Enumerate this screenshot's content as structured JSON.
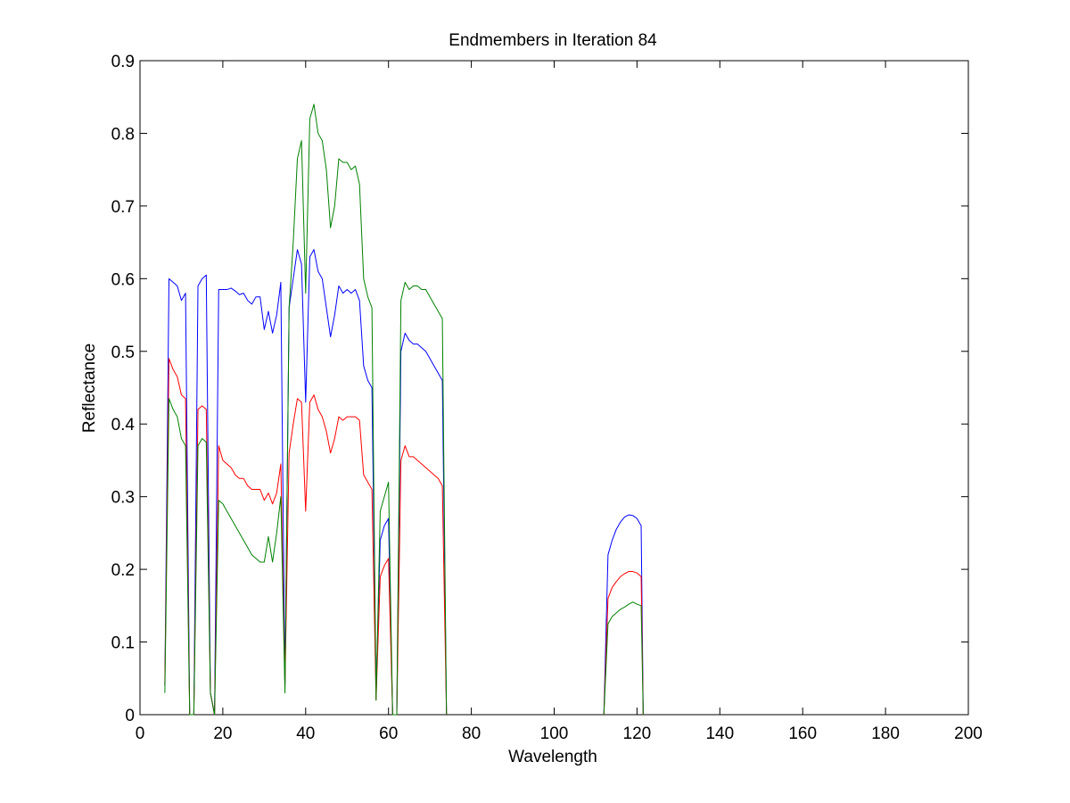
{
  "chart_data": {
    "type": "line",
    "title": "Endmembers in Iteration 84",
    "xlabel": "Wavelength",
    "ylabel": "Reflectance",
    "xlim": [
      0,
      200
    ],
    "ylim": [
      0,
      0.9
    ],
    "xticks": [
      0,
      20,
      40,
      60,
      80,
      100,
      120,
      140,
      160,
      180,
      200
    ],
    "yticks": [
      0,
      0.1,
      0.2,
      0.3,
      0.4,
      0.5,
      0.6,
      0.7,
      0.8,
      0.9
    ],
    "xtick_labels": [
      "0",
      "20",
      "40",
      "60",
      "80",
      "100",
      "120",
      "140",
      "160",
      "180",
      "200"
    ],
    "ytick_labels": [
      "0",
      "0.1",
      "0.2",
      "0.3",
      "0.4",
      "0.5",
      "0.6",
      "0.7",
      "0.8",
      "0.9"
    ],
    "grid": false,
    "legend": "none",
    "series": [
      {
        "color": "#0000ff",
        "segments": [
          [
            [
              6,
              0.04
            ],
            [
              7,
              0.6
            ],
            [
              8,
              0.595
            ],
            [
              9,
              0.59
            ],
            [
              10,
              0.57
            ],
            [
              11,
              0.58
            ],
            [
              12,
              0.0
            ],
            [
              13,
              0.0
            ],
            [
              14,
              0.59
            ],
            [
              15,
              0.6
            ],
            [
              16,
              0.605
            ],
            [
              17,
              0.03
            ],
            [
              18,
              0.0
            ],
            [
              19,
              0.585
            ],
            [
              20,
              0.585
            ],
            [
              21,
              0.585
            ],
            [
              22,
              0.587
            ],
            [
              23,
              0.583
            ],
            [
              24,
              0.578
            ],
            [
              25,
              0.58
            ],
            [
              26,
              0.57
            ],
            [
              27,
              0.565
            ],
            [
              28,
              0.575
            ],
            [
              29,
              0.575
            ],
            [
              30,
              0.53
            ],
            [
              31,
              0.555
            ],
            [
              32,
              0.525
            ],
            [
              33,
              0.55
            ],
            [
              34,
              0.595
            ],
            [
              35,
              0.04
            ],
            [
              36,
              0.56
            ],
            [
              37,
              0.6
            ],
            [
              38,
              0.64
            ],
            [
              39,
              0.62
            ],
            [
              40,
              0.43
            ],
            [
              41,
              0.63
            ],
            [
              42,
              0.64
            ],
            [
              43,
              0.61
            ],
            [
              44,
              0.6
            ],
            [
              45,
              0.56
            ],
            [
              46,
              0.52
            ],
            [
              47,
              0.55
            ],
            [
              48,
              0.59
            ],
            [
              49,
              0.58
            ],
            [
              50,
              0.585
            ],
            [
              51,
              0.58
            ],
            [
              52,
              0.585
            ],
            [
              53,
              0.57
            ],
            [
              54,
              0.48
            ],
            [
              55,
              0.46
            ],
            [
              56,
              0.45
            ],
            [
              57,
              0.03
            ],
            [
              58,
              0.24
            ],
            [
              59,
              0.26
            ],
            [
              60,
              0.27
            ],
            [
              61,
              0.0
            ],
            [
              62,
              0.0
            ],
            [
              63,
              0.5
            ],
            [
              64,
              0.525
            ],
            [
              65,
              0.515
            ],
            [
              66,
              0.51
            ],
            [
              67,
              0.51
            ],
            [
              68,
              0.505
            ],
            [
              69,
              0.5
            ],
            [
              70,
              0.49
            ],
            [
              71,
              0.48
            ],
            [
              72,
              0.47
            ],
            [
              73,
              0.46
            ],
            [
              74,
              0.0
            ]
          ],
          [
            [
              112,
              0.0
            ],
            [
              113,
              0.22
            ],
            [
              114,
              0.24
            ],
            [
              115,
              0.255
            ],
            [
              116,
              0.265
            ],
            [
              117,
              0.272
            ],
            [
              118,
              0.275
            ],
            [
              119,
              0.274
            ],
            [
              120,
              0.27
            ],
            [
              121,
              0.26
            ],
            [
              121.5,
              0.0
            ]
          ]
        ]
      },
      {
        "color": "#ff0000",
        "segments": [
          [
            [
              6,
              0.04
            ],
            [
              7,
              0.49
            ],
            [
              8,
              0.475
            ],
            [
              9,
              0.465
            ],
            [
              10,
              0.44
            ],
            [
              11,
              0.435
            ],
            [
              12,
              0.0
            ],
            [
              13,
              0.0
            ],
            [
              14,
              0.42
            ],
            [
              15,
              0.425
            ],
            [
              16,
              0.42
            ],
            [
              17,
              0.03
            ],
            [
              18,
              0.0
            ],
            [
              19,
              0.37
            ],
            [
              20,
              0.35
            ],
            [
              21,
              0.345
            ],
            [
              22,
              0.34
            ],
            [
              23,
              0.33
            ],
            [
              24,
              0.325
            ],
            [
              25,
              0.325
            ],
            [
              26,
              0.315
            ],
            [
              27,
              0.31
            ],
            [
              28,
              0.31
            ],
            [
              29,
              0.31
            ],
            [
              30,
              0.295
            ],
            [
              31,
              0.305
            ],
            [
              32,
              0.29
            ],
            [
              33,
              0.305
            ],
            [
              34,
              0.345
            ],
            [
              35,
              0.04
            ],
            [
              36,
              0.36
            ],
            [
              37,
              0.4
            ],
            [
              38,
              0.435
            ],
            [
              39,
              0.43
            ],
            [
              40,
              0.28
            ],
            [
              41,
              0.43
            ],
            [
              42,
              0.44
            ],
            [
              43,
              0.42
            ],
            [
              44,
              0.41
            ],
            [
              45,
              0.39
            ],
            [
              46,
              0.36
            ],
            [
              47,
              0.38
            ],
            [
              48,
              0.41
            ],
            [
              49,
              0.405
            ],
            [
              50,
              0.41
            ],
            [
              51,
              0.41
            ],
            [
              52,
              0.41
            ],
            [
              53,
              0.405
            ],
            [
              54,
              0.33
            ],
            [
              55,
              0.32
            ],
            [
              56,
              0.31
            ],
            [
              57,
              0.02
            ],
            [
              58,
              0.19
            ],
            [
              59,
              0.205
            ],
            [
              60,
              0.215
            ],
            [
              61,
              0.0
            ],
            [
              62,
              0.0
            ],
            [
              63,
              0.35
            ],
            [
              64,
              0.37
            ],
            [
              65,
              0.355
            ],
            [
              66,
              0.355
            ],
            [
              67,
              0.35
            ],
            [
              68,
              0.345
            ],
            [
              69,
              0.34
            ],
            [
              70,
              0.335
            ],
            [
              71,
              0.33
            ],
            [
              72,
              0.325
            ],
            [
              73,
              0.315
            ],
            [
              74,
              0.0
            ]
          ],
          [
            [
              112,
              0.0
            ],
            [
              113,
              0.16
            ],
            [
              114,
              0.175
            ],
            [
              115,
              0.183
            ],
            [
              116,
              0.19
            ],
            [
              117,
              0.194
            ],
            [
              118,
              0.197
            ],
            [
              119,
              0.197
            ],
            [
              120,
              0.195
            ],
            [
              121,
              0.19
            ],
            [
              121.5,
              0.0
            ]
          ]
        ]
      },
      {
        "color": "#008000",
        "segments": [
          [
            [
              6,
              0.03
            ],
            [
              7,
              0.435
            ],
            [
              8,
              0.42
            ],
            [
              9,
              0.41
            ],
            [
              10,
              0.38
            ],
            [
              11,
              0.37
            ],
            [
              12,
              0.0
            ],
            [
              13,
              0.0
            ],
            [
              14,
              0.37
            ],
            [
              15,
              0.38
            ],
            [
              16,
              0.375
            ],
            [
              17,
              0.03
            ],
            [
              18,
              0.0
            ],
            [
              19,
              0.295
            ],
            [
              20,
              0.29
            ],
            [
              21,
              0.28
            ],
            [
              22,
              0.27
            ],
            [
              23,
              0.26
            ],
            [
              24,
              0.25
            ],
            [
              25,
              0.24
            ],
            [
              26,
              0.23
            ],
            [
              27,
              0.22
            ],
            [
              28,
              0.215
            ],
            [
              29,
              0.21
            ],
            [
              30,
              0.21
            ],
            [
              31,
              0.245
            ],
            [
              32,
              0.21
            ],
            [
              33,
              0.25
            ],
            [
              34,
              0.3
            ],
            [
              35,
              0.03
            ],
            [
              36,
              0.56
            ],
            [
              37,
              0.65
            ],
            [
              38,
              0.765
            ],
            [
              39,
              0.79
            ],
            [
              40,
              0.58
            ],
            [
              41,
              0.82
            ],
            [
              42,
              0.84
            ],
            [
              43,
              0.8
            ],
            [
              44,
              0.79
            ],
            [
              45,
              0.75
            ],
            [
              46,
              0.67
            ],
            [
              47,
              0.7
            ],
            [
              48,
              0.765
            ],
            [
              49,
              0.76
            ],
            [
              50,
              0.76
            ],
            [
              51,
              0.75
            ],
            [
              52,
              0.755
            ],
            [
              53,
              0.73
            ],
            [
              54,
              0.6
            ],
            [
              55,
              0.575
            ],
            [
              56,
              0.56
            ],
            [
              57,
              0.02
            ],
            [
              58,
              0.28
            ],
            [
              59,
              0.3
            ],
            [
              60,
              0.32
            ],
            [
              61,
              0.0
            ],
            [
              62,
              0.0
            ],
            [
              63,
              0.57
            ],
            [
              64,
              0.595
            ],
            [
              65,
              0.585
            ],
            [
              66,
              0.59
            ],
            [
              67,
              0.59
            ],
            [
              68,
              0.585
            ],
            [
              69,
              0.585
            ],
            [
              70,
              0.575
            ],
            [
              71,
              0.565
            ],
            [
              72,
              0.555
            ],
            [
              73,
              0.545
            ],
            [
              74,
              0.0
            ]
          ],
          [
            [
              112,
              0.0
            ],
            [
              113,
              0.125
            ],
            [
              114,
              0.135
            ],
            [
              115,
              0.14
            ],
            [
              116,
              0.145
            ],
            [
              117,
              0.148
            ],
            [
              118,
              0.152
            ],
            [
              119,
              0.155
            ],
            [
              120,
              0.152
            ],
            [
              121,
              0.15
            ],
            [
              121.5,
              0.0
            ]
          ]
        ]
      }
    ]
  }
}
